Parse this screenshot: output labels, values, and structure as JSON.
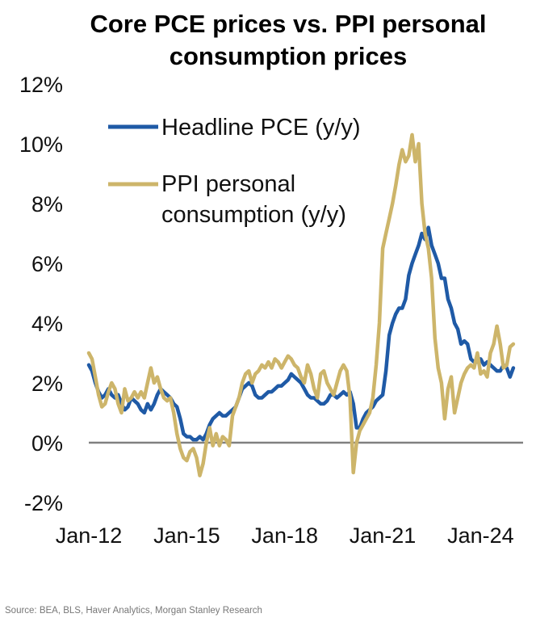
{
  "chart_data": {
    "type": "line",
    "title": [
      "Core PCE prices vs. PPI personal",
      "consumption prices"
    ],
    "ylim": [
      -2,
      12
    ],
    "yticks": [
      12,
      10,
      8,
      6,
      4,
      2,
      0,
      -2
    ],
    "ytick_labels": [
      "12%",
      "10%",
      "8%",
      "6%",
      "4%",
      "2%",
      "0%",
      "-2%"
    ],
    "xlim": [
      2012,
      2025.3
    ],
    "xticks": [
      2012,
      2015,
      2018,
      2021,
      2024
    ],
    "xtick_labels": [
      "Jan-12",
      "Jan-15",
      "Jan-18",
      "Jan-21",
      "Jan-24"
    ],
    "legend_position": "top-left",
    "source": "Source: BEA, BLS, Haver Analytics, Morgan Stanley Research",
    "colors": {
      "pce": "#1f5aa6",
      "ppi": "#cdb56a",
      "zero_line": "#808080"
    },
    "series": [
      {
        "name": "Headline PCE (y/y)",
        "legend_lines": [
          "Headline PCE (y/y)"
        ],
        "x": [
          2012.0,
          2012.1,
          2012.2,
          2012.3,
          2012.4,
          2012.5,
          2012.6,
          2012.7,
          2012.8,
          2012.9,
          2013.0,
          2013.1,
          2013.2,
          2013.3,
          2013.4,
          2013.5,
          2013.6,
          2013.7,
          2013.8,
          2013.9,
          2014.0,
          2014.1,
          2014.2,
          2014.3,
          2014.4,
          2014.5,
          2014.6,
          2014.7,
          2014.8,
          2014.9,
          2015.0,
          2015.1,
          2015.2,
          2015.3,
          2015.4,
          2015.5,
          2015.6,
          2015.7,
          2015.8,
          2015.9,
          2016.0,
          2016.1,
          2016.2,
          2016.3,
          2016.4,
          2016.5,
          2016.6,
          2016.7,
          2016.8,
          2016.9,
          2017.0,
          2017.1,
          2017.2,
          2017.3,
          2017.4,
          2017.5,
          2017.6,
          2017.7,
          2017.8,
          2017.9,
          2018.0,
          2018.1,
          2018.2,
          2018.3,
          2018.4,
          2018.5,
          2018.6,
          2018.7,
          2018.8,
          2018.9,
          2019.0,
          2019.1,
          2019.2,
          2019.3,
          2019.4,
          2019.5,
          2019.6,
          2019.7,
          2019.8,
          2019.9,
          2020.0,
          2020.1,
          2020.2,
          2020.3,
          2020.4,
          2020.5,
          2020.6,
          2020.7,
          2020.8,
          2020.9,
          2021.0,
          2021.1,
          2021.2,
          2021.3,
          2021.4,
          2021.5,
          2021.6,
          2021.7,
          2021.8,
          2021.9,
          2022.0,
          2022.1,
          2022.2,
          2022.3,
          2022.4,
          2022.5,
          2022.6,
          2022.7,
          2022.8,
          2022.9,
          2023.0,
          2023.1,
          2023.2,
          2023.3,
          2023.4,
          2023.5,
          2023.6,
          2023.7,
          2023.8,
          2023.9,
          2024.0,
          2024.1,
          2024.2,
          2024.3,
          2024.4,
          2024.5,
          2024.6,
          2024.7,
          2024.8,
          2024.9,
          2025.0
        ],
        "values": [
          2.6,
          2.4,
          2.0,
          1.7,
          1.5,
          1.6,
          1.8,
          1.6,
          1.5,
          1.6,
          1.3,
          1.1,
          1.2,
          1.5,
          1.4,
          1.3,
          1.1,
          1.0,
          1.3,
          1.1,
          1.3,
          1.6,
          1.8,
          1.7,
          1.6,
          1.5,
          1.3,
          1.2,
          0.8,
          0.3,
          0.2,
          0.2,
          0.1,
          0.1,
          0.2,
          0.1,
          0.3,
          0.6,
          0.8,
          0.9,
          1.0,
          0.9,
          0.9,
          1.0,
          1.1,
          1.2,
          1.5,
          1.8,
          1.9,
          2.0,
          1.9,
          1.6,
          1.5,
          1.5,
          1.6,
          1.7,
          1.7,
          1.8,
          1.9,
          1.9,
          2.0,
          2.1,
          2.3,
          2.2,
          2.1,
          2.0,
          1.8,
          1.6,
          1.5,
          1.5,
          1.4,
          1.3,
          1.3,
          1.4,
          1.6,
          1.6,
          1.5,
          1.6,
          1.7,
          1.6,
          1.7,
          1.3,
          0.5,
          0.5,
          0.8,
          1.0,
          1.1,
          1.2,
          1.4,
          1.5,
          1.6,
          2.4,
          3.6,
          4.0,
          4.3,
          4.5,
          4.5,
          4.8,
          5.6,
          6.0,
          6.3,
          6.6,
          7.0,
          6.8,
          7.2,
          6.6,
          6.3,
          6.0,
          5.5,
          5.5,
          4.8,
          4.5,
          4.0,
          3.8,
          3.3,
          3.4,
          3.3,
          2.8,
          2.7,
          2.7,
          2.8,
          2.6,
          2.7,
          2.6,
          2.5,
          2.4,
          2.4,
          2.6,
          2.5,
          2.2,
          2.5
        ]
      },
      {
        "name": "PPI personal consumption (y/y)",
        "legend_lines": [
          "PPI personal",
          "consumption (y/y)"
        ],
        "x": [
          2012.0,
          2012.1,
          2012.2,
          2012.3,
          2012.4,
          2012.5,
          2012.6,
          2012.7,
          2012.8,
          2012.9,
          2013.0,
          2013.1,
          2013.2,
          2013.3,
          2013.4,
          2013.5,
          2013.6,
          2013.7,
          2013.8,
          2013.9,
          2014.0,
          2014.1,
          2014.2,
          2014.3,
          2014.4,
          2014.5,
          2014.6,
          2014.7,
          2014.8,
          2014.9,
          2015.0,
          2015.1,
          2015.2,
          2015.3,
          2015.4,
          2015.5,
          2015.6,
          2015.7,
          2015.8,
          2015.9,
          2016.0,
          2016.1,
          2016.2,
          2016.3,
          2016.4,
          2016.5,
          2016.6,
          2016.7,
          2016.8,
          2016.9,
          2017.0,
          2017.1,
          2017.2,
          2017.3,
          2017.4,
          2017.5,
          2017.6,
          2017.7,
          2017.8,
          2017.9,
          2018.0,
          2018.1,
          2018.2,
          2018.3,
          2018.4,
          2018.5,
          2018.6,
          2018.7,
          2018.8,
          2018.9,
          2019.0,
          2019.1,
          2019.2,
          2019.3,
          2019.4,
          2019.5,
          2019.6,
          2019.7,
          2019.8,
          2019.9,
          2020.0,
          2020.1,
          2020.2,
          2020.3,
          2020.4,
          2020.5,
          2020.6,
          2020.7,
          2020.8,
          2020.9,
          2021.0,
          2021.1,
          2021.2,
          2021.3,
          2021.4,
          2021.5,
          2021.6,
          2021.7,
          2021.8,
          2021.9,
          2022.0,
          2022.1,
          2022.2,
          2022.3,
          2022.4,
          2022.5,
          2022.6,
          2022.7,
          2022.8,
          2022.9,
          2023.0,
          2023.1,
          2023.2,
          2023.3,
          2023.4,
          2023.5,
          2023.6,
          2023.7,
          2023.8,
          2023.9,
          2024.0,
          2024.1,
          2024.2,
          2024.3,
          2024.4,
          2024.5,
          2024.6,
          2024.7,
          2024.8,
          2024.9,
          2025.0
        ],
        "values": [
          3.0,
          2.8,
          2.2,
          1.6,
          1.2,
          1.3,
          1.7,
          2.0,
          1.8,
          1.3,
          1.0,
          1.8,
          1.4,
          1.5,
          1.7,
          1.5,
          1.7,
          1.5,
          2.0,
          2.5,
          2.0,
          2.2,
          1.8,
          1.5,
          1.4,
          1.5,
          1.0,
          0.3,
          -0.2,
          -0.5,
          -0.6,
          -0.3,
          -0.2,
          -0.5,
          -1.1,
          -0.7,
          0.0,
          0.5,
          -0.1,
          0.3,
          -0.1,
          0.2,
          0.1,
          -0.1,
          0.9,
          1.2,
          1.5,
          2.0,
          2.3,
          2.4,
          2.0,
          2.3,
          2.4,
          2.6,
          2.5,
          2.7,
          2.5,
          2.8,
          2.7,
          2.5,
          2.7,
          2.9,
          2.8,
          2.6,
          2.5,
          2.2,
          2.0,
          2.6,
          2.3,
          1.8,
          1.5,
          2.3,
          2.4,
          2.0,
          1.8,
          1.6,
          2.0,
          2.4,
          2.6,
          2.4,
          1.5,
          -1.0,
          0.0,
          0.4,
          0.6,
          0.8,
          1.0,
          1.5,
          2.6,
          4.0,
          6.5,
          7.0,
          7.5,
          8.0,
          8.6,
          9.3,
          9.8,
          9.4,
          9.6,
          10.3,
          9.4,
          10.0,
          8.0,
          7.0,
          6.5,
          5.5,
          3.5,
          2.5,
          2.0,
          0.8,
          1.8,
          2.2,
          1.0,
          1.5,
          2.0,
          2.3,
          2.5,
          2.6,
          2.5,
          3.0,
          2.3,
          2.4,
          2.2,
          3.0,
          3.3,
          3.9,
          3.3,
          2.5,
          2.6,
          3.2,
          3.3
        ]
      }
    ]
  }
}
